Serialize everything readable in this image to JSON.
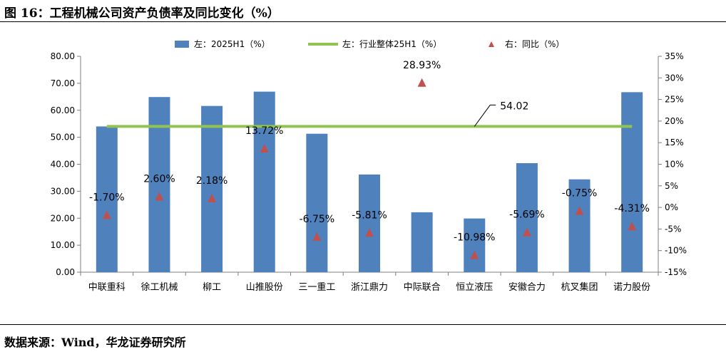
{
  "figure": {
    "title": "图 16：工程机械公司资产负债率及同比变化（%）",
    "source": "数据来源：Wind，华龙证券研究所"
  },
  "chart_data": {
    "type": "bar",
    "categories": [
      "中联重科",
      "徐工机械",
      "柳工",
      "山推股份",
      "三一重工",
      "浙江鼎力",
      "中际联合",
      "恒立液压",
      "安徽合力",
      "杭叉集团",
      "诺力股份"
    ],
    "series": [
      {
        "name": "左：2025H1（%）",
        "kind": "bar",
        "axis": "left",
        "color": "#4f81bd",
        "values": [
          54.0,
          64.9,
          61.6,
          66.9,
          51.3,
          36.2,
          22.2,
          19.9,
          40.4,
          34.4,
          66.7
        ]
      },
      {
        "name": "左：行业整体25H1（%）",
        "kind": "line",
        "axis": "left",
        "color": "#92c34f",
        "value": 54.02,
        "label": "54.02"
      },
      {
        "name": "右：同比（%）",
        "kind": "marker",
        "axis": "right",
        "color": "#c0504d",
        "values": [
          -1.7,
          2.6,
          2.18,
          13.72,
          -6.75,
          -5.81,
          28.93,
          -10.98,
          -5.69,
          -0.75,
          -4.31
        ],
        "labels": [
          "-1.70%",
          "2.60%",
          "2.18%",
          "13.72%",
          "-6.75%",
          "-5.81%",
          "28.93%",
          "-10.98%",
          "-5.69%",
          "-0.75%",
          "-4.31%"
        ]
      }
    ],
    "left_axis": {
      "ylim": [
        0,
        80
      ],
      "ticks": [
        0,
        10,
        20,
        30,
        40,
        50,
        60,
        70,
        80
      ],
      "tick_labels": [
        "0.00",
        "10.00",
        "20.00",
        "30.00",
        "40.00",
        "50.00",
        "60.00",
        "70.00",
        "80.00"
      ]
    },
    "right_axis": {
      "ylim": [
        -15,
        35
      ],
      "ticks": [
        -15,
        -10,
        -5,
        0,
        5,
        10,
        15,
        20,
        25,
        30,
        35
      ],
      "tick_labels": [
        "-15%",
        "-10%",
        "-5%",
        "0%",
        "5%",
        "10%",
        "15%",
        "20%",
        "25%",
        "30%",
        "35%"
      ]
    },
    "grid": false,
    "legend": "top-center"
  }
}
